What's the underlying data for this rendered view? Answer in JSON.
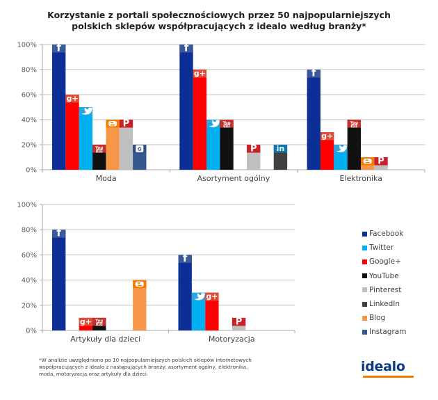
{
  "title_lines": [
    "Korzystanie z portali społecznościowych przez 50 najpopularniejszych",
    "polskich sklepów współpracujących z idealo według branży*"
  ],
  "series_colors": {
    "Facebook": {
      "bar": "#0b2f96",
      "icon": "#3b5998",
      "icon_name": "facebook-icon"
    },
    "Twitter": {
      "bar": "#00b0f0",
      "icon": "#2fa4dc",
      "icon_name": "twitter-icon"
    },
    "Google+": {
      "bar": "#ff0000",
      "icon": "#dd4b39",
      "icon_name": "google-plus-icon"
    },
    "YouTube": {
      "bar": "#111111",
      "icon": "#c4302b",
      "icon_name": "youtube-icon"
    },
    "Pinterest": {
      "bar": "#bfbfbf",
      "icon": "#cb2027",
      "icon_name": "pinterest-icon"
    },
    "LinkedIn": {
      "bar": "#404040",
      "icon": "#0e76a8",
      "icon_name": "linkedin-icon"
    },
    "Blog": {
      "bar": "#f79646",
      "icon": "#f57d00",
      "icon_name": "blogger-icon"
    },
    "Instagram": {
      "bar": "#33598f",
      "icon": "#2f4f80",
      "icon_name": "instagram-icon"
    }
  },
  "chart_data": [
    {
      "type": "bar",
      "title": "",
      "xlabel": "",
      "ylabel": "",
      "ylim": [
        0,
        100
      ],
      "yticks": [
        "0%",
        "20%",
        "40%",
        "60%",
        "80%",
        "100%"
      ],
      "grid": true,
      "categories": [
        "Moda",
        "Asortyment ogólny",
        "Elektronika"
      ],
      "series": [
        {
          "name": "Facebook",
          "values": [
            100,
            100,
            80
          ]
        },
        {
          "name": "Google+",
          "values": [
            60,
            80,
            30
          ]
        },
        {
          "name": "Twitter",
          "values": [
            50,
            40,
            20
          ]
        },
        {
          "name": "YouTube",
          "values": [
            20,
            40,
            40
          ]
        },
        {
          "name": "Blog",
          "values": [
            40,
            0,
            10
          ]
        },
        {
          "name": "Pinterest",
          "values": [
            40,
            20,
            10
          ]
        },
        {
          "name": "Instagram",
          "values": [
            20,
            0,
            0
          ]
        },
        {
          "name": "LinkedIn",
          "values": [
            0,
            20,
            0
          ]
        }
      ]
    },
    {
      "type": "bar",
      "title": "",
      "xlabel": "",
      "ylabel": "",
      "ylim": [
        0,
        100
      ],
      "yticks": [
        "0%",
        "20%",
        "40%",
        "60%",
        "80%",
        "100%"
      ],
      "grid": true,
      "categories": [
        "Artykuły dla dzieci",
        "Motoryzacja"
      ],
      "series": [
        {
          "name": "Facebook",
          "values": [
            80,
            60
          ]
        },
        {
          "name": "Twitter",
          "values": [
            0,
            30
          ]
        },
        {
          "name": "Google+",
          "values": [
            10,
            30
          ]
        },
        {
          "name": "YouTube",
          "values": [
            10,
            0
          ]
        },
        {
          "name": "Pinterest",
          "values": [
            0,
            10
          ]
        },
        {
          "name": "LinkedIn",
          "values": [
            0,
            0
          ]
        },
        {
          "name": "Blog",
          "values": [
            40,
            0
          ]
        },
        {
          "name": "Instagram",
          "values": [
            0,
            0
          ]
        }
      ],
      "legend": {
        "placement": "right",
        "entries": [
          "Facebook",
          "Twitter",
          "Google+",
          "YouTube",
          "Pinterest",
          "LinkedIn",
          "Blog",
          "Instagram"
        ]
      }
    }
  ],
  "footnote": "*W analizie uwzględniono po 10 najpopularniejszych polskich sklepów internetowych współpracujących z idealo z następujących branży: asortyment ogólny, elektronika, moda, motoryzacja oraz artykuły dla dzieci.",
  "logo": {
    "text": "idealo",
    "accent_color": "#f07d00",
    "text_color": "#0a3a86"
  }
}
